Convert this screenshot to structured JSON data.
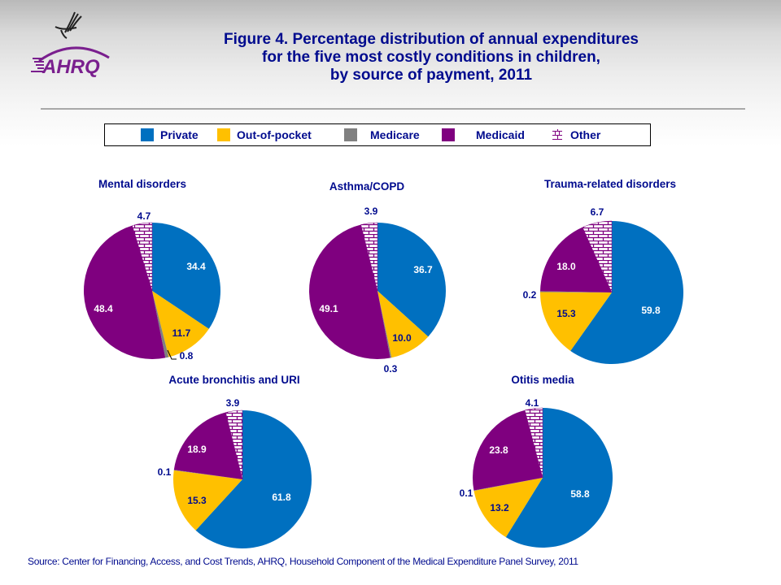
{
  "header": {
    "logo": {
      "emblem_icon": "hhs-eagle-icon",
      "text": "AHRQ"
    },
    "title_lines": [
      "Figure 4. Percentage distribution of annual expenditures",
      "for the five most costly conditions in children,",
      "by source of payment, 2011"
    ]
  },
  "legend": {
    "items": [
      {
        "label": "Private",
        "color": "#0070c0",
        "pattern": "solid"
      },
      {
        "label": "Out-of-pocket",
        "color": "#ffc000",
        "pattern": "solid"
      },
      {
        "label": "Medicare",
        "color": "#808080",
        "pattern": "solid"
      },
      {
        "label": "Medicaid",
        "color": "#7f007f",
        "pattern": "solid"
      },
      {
        "label": "Other",
        "color": "#7f007f",
        "pattern": "brick"
      }
    ]
  },
  "chart_data": [
    {
      "type": "pie",
      "title": "Mental disorders",
      "categories": [
        "Private",
        "Out-of-pocket",
        "Medicare",
        "Medicaid",
        "Other"
      ],
      "values": [
        34.4,
        11.7,
        0.8,
        48.4,
        4.7
      ],
      "labels": [
        "34.4",
        "11.7",
        "0.8",
        "48.4",
        "4.7"
      ]
    },
    {
      "type": "pie",
      "title": "Asthma/COPD",
      "categories": [
        "Private",
        "Out-of-pocket",
        "Medicare",
        "Medicaid",
        "Other"
      ],
      "values": [
        36.7,
        10.0,
        0.3,
        49.1,
        3.9
      ],
      "labels": [
        "36.7",
        "10.0",
        "0.3",
        "49.1",
        "3.9"
      ]
    },
    {
      "type": "pie",
      "title": "Trauma-related disorders",
      "categories": [
        "Private",
        "Out-of-pocket",
        "Medicare",
        "Medicaid",
        "Other"
      ],
      "values": [
        59.8,
        15.3,
        0.2,
        18.0,
        6.7
      ],
      "labels": [
        "59.8",
        "15.3",
        "0.2",
        "18.0",
        "6.7"
      ]
    },
    {
      "type": "pie",
      "title": "Acute bronchitis and URI",
      "categories": [
        "Private",
        "Out-of-pocket",
        "Medicare",
        "Medicaid",
        "Other"
      ],
      "values": [
        61.8,
        15.3,
        0.1,
        18.9,
        3.9
      ],
      "labels": [
        "61.8",
        "15.3",
        "0.1",
        "18.9",
        "3.9"
      ]
    },
    {
      "type": "pie",
      "title": "Otitis media",
      "categories": [
        "Private",
        "Out-of-pocket",
        "Medicare",
        "Medicaid",
        "Other"
      ],
      "values": [
        58.8,
        13.2,
        0.1,
        23.8,
        4.1
      ],
      "labels": [
        "58.8",
        "13.2",
        "0.1",
        "23.8",
        "4.1"
      ]
    }
  ],
  "footer": {
    "source": "Source: Center for Financing, Access, and Cost Trends, AHRQ,  Household Component of the Medical Expenditure Panel Survey,  2011"
  }
}
